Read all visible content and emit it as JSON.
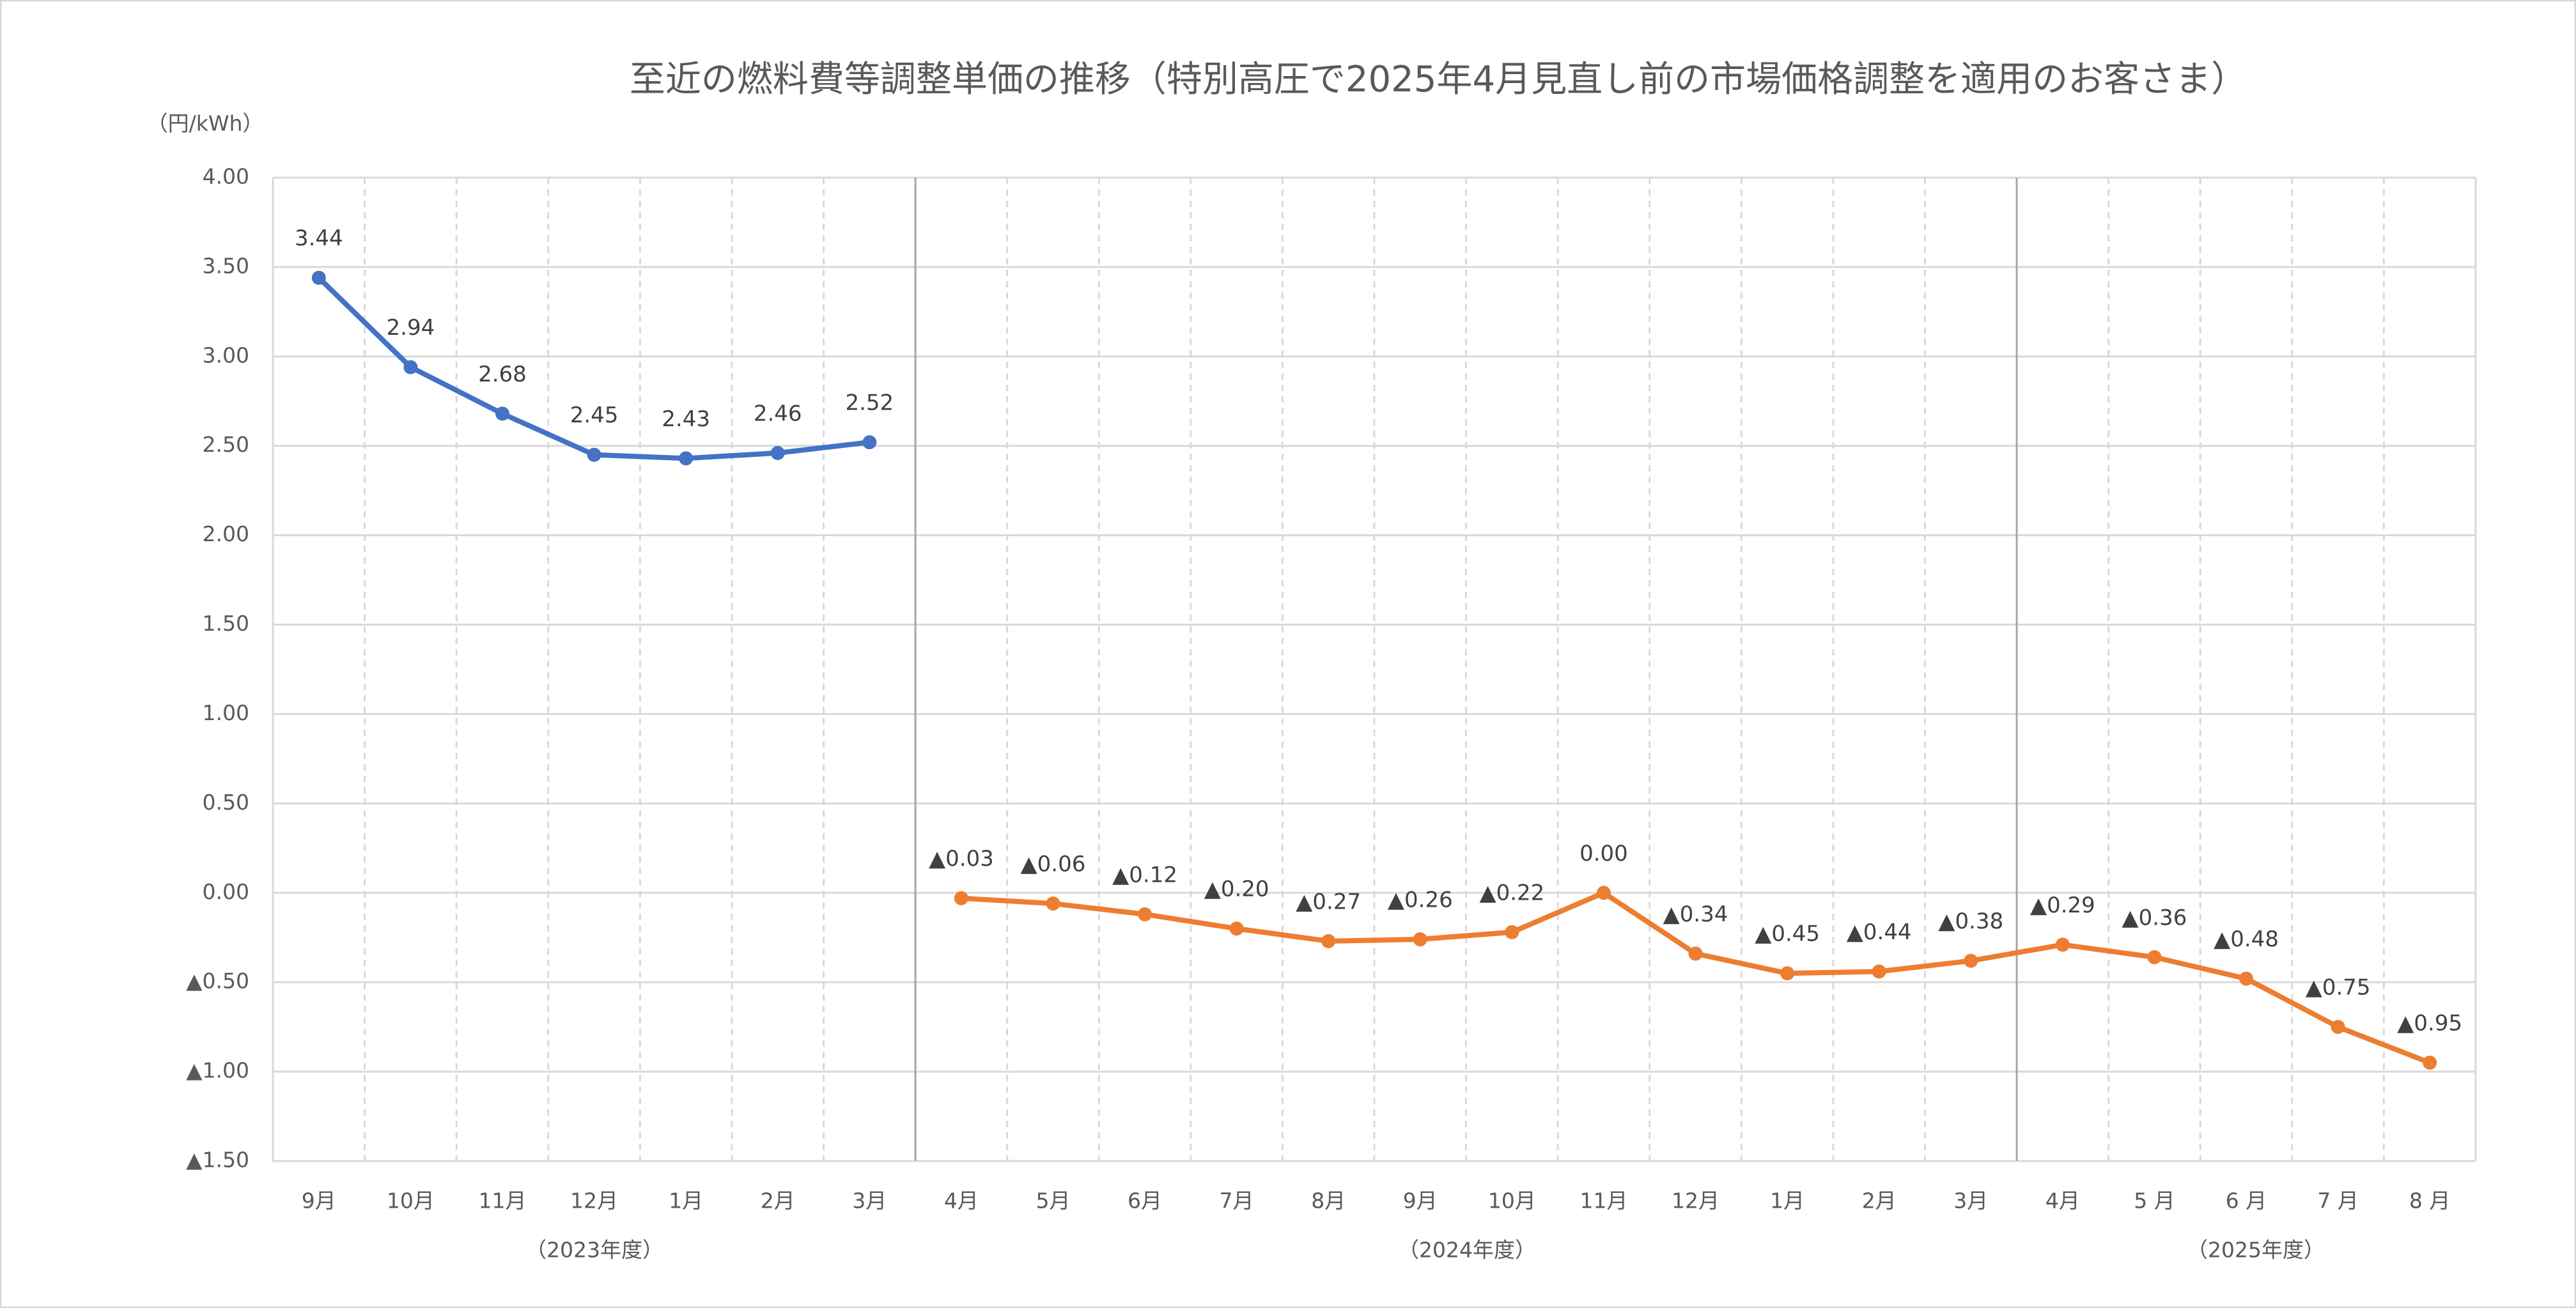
{
  "chart_data": {
    "type": "line",
    "title": "至近の燃料費等調整単価の推移（特別高圧で2025年4月見直し前の市場価格調整を適用のお客さま）",
    "y_label": "（円/kWh）",
    "categories": [
      "9月",
      "10月",
      "11月",
      "12月",
      "1月",
      "2月",
      "3月",
      "4月",
      "5月",
      "6月",
      "7月",
      "8月",
      "9月",
      "10月",
      "11月",
      "12月",
      "1月",
      "2月",
      "3月",
      "4月",
      "5 月",
      "6 月",
      "7 月",
      "8 月"
    ],
    "groups": [
      "（2023年度）",
      "（2024年度）",
      "（2025年度）"
    ],
    "series": [
      {
        "color": "#4472c4",
        "values": [
          3.44,
          2.94,
          2.68,
          2.45,
          2.43,
          2.46,
          2.52,
          null,
          null,
          null,
          null,
          null,
          null,
          null,
          null,
          null,
          null,
          null,
          null,
          null,
          null,
          null,
          null,
          null
        ]
      },
      {
        "color": "#ed7d31",
        "values": [
          null,
          null,
          null,
          null,
          null,
          null,
          null,
          -0.03,
          -0.06,
          -0.12,
          -0.2,
          -0.27,
          -0.26,
          -0.22,
          0,
          -0.34,
          -0.45,
          -0.44,
          -0.38,
          -0.29,
          -0.36,
          -0.48,
          -0.75,
          -0.95
        ],
        "value_labels": [
          null,
          null,
          null,
          null,
          null,
          null,
          null,
          "▲0.03",
          "▲0.06",
          "▲0.12",
          "▲0.20",
          "▲0.27",
          "▲0.26",
          "▲0.22",
          "0.00",
          "▲0.34",
          "▲0.45",
          "▲0.44",
          "▲0.38",
          "▲0.29",
          "▲0.36",
          "▲0.48",
          "▲0.75",
          "▲0.95"
        ]
      }
    ],
    "ylim": [
      -1.5,
      4
    ],
    "yticks": [
      {
        "value": -1.5,
        "label": "▲1.50"
      },
      {
        "value": -1,
        "label": "▲1.00"
      },
      {
        "value": -0.5,
        "label": "▲0.50"
      },
      {
        "value": 0,
        "label": "0.00"
      },
      {
        "value": 0.5,
        "label": "0.50"
      },
      {
        "value": 1,
        "label": "1.00"
      },
      {
        "value": 1.5,
        "label": "1.50"
      },
      {
        "value": 2,
        "label": "2.00"
      },
      {
        "value": 2.5,
        "label": "2.50"
      },
      {
        "value": 3,
        "label": "3.00"
      },
      {
        "value": 3.5,
        "label": "3.50"
      },
      {
        "value": 4,
        "label": "4.00"
      }
    ],
    "grid": true
  }
}
